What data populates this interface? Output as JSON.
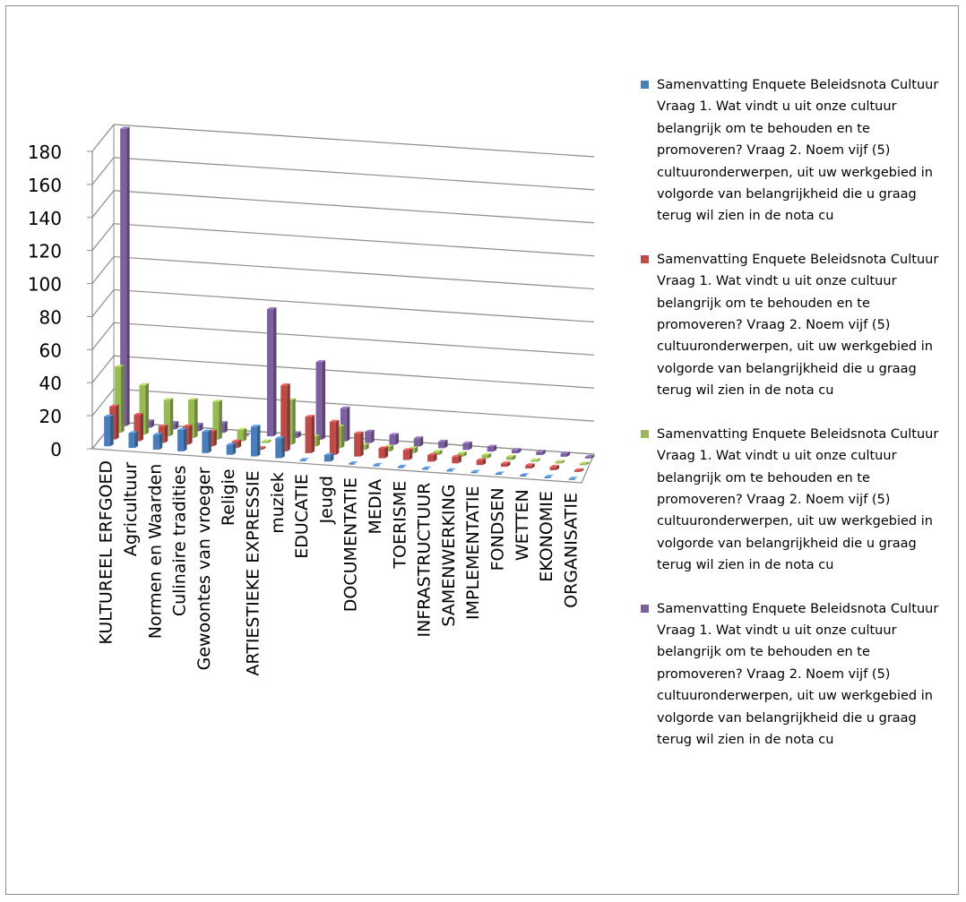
{
  "chart_data": {
    "type": "bar",
    "title": "",
    "xlabel": "",
    "ylabel": "",
    "ylim": [
      0,
      180
    ],
    "yticks": [
      0,
      20,
      40,
      60,
      80,
      100,
      120,
      140,
      160,
      180
    ],
    "grid": true,
    "legend_position": "right",
    "categories": [
      "KULTUREEL ERFGOED",
      "Agricultuur",
      "Normen en Waarden",
      "Culinaire tradities",
      "Gewoontes van vroeger",
      "Religie",
      "ARTIESTIEKE EXPRESSIE",
      "muziek",
      "EDUCATIE",
      "Jeugd",
      "DOCUMENTATIE",
      "MEDIA",
      "TOERISME",
      "INFRASTRUCTUUR",
      "SAMENWERKING",
      "IMPLEMENTATIE",
      "FONDSEN",
      "WETTEN",
      "EKONOMIE",
      "ORGANISATIE"
    ],
    "series": [
      {
        "name": "Samenvatting Enquete Beleidsnota Cultuur Vraag 1. Wat vindt u uit onze cultuur belangrijk om te behouden en te promoveren? Vraag 2. Noem vijf (5) cultuuronderwerpen, uit uw werkgebied in volgorde van belangrijkheid die u graag terug wil zien in de nota cu",
        "color": "#4a7ebb",
        "values": [
          18,
          9,
          9,
          13,
          13,
          6,
          18,
          12,
          0,
          4,
          0,
          0,
          0,
          0,
          0,
          0,
          0,
          0,
          0,
          0
        ]
      },
      {
        "name": "Samenvatting Enquete Beleidsnota Cultuur Vraag 1. Wat vindt u uit onze cultuur belangrijk om te behouden en te promoveren? Vraag 2. Noem vijf (5) cultuuronderwerpen, uit uw werkgebied in volgorde van belangrijkheid die u graag terug wil zien in de nota cu",
        "color": "#be4b48",
        "values": [
          20,
          16,
          10,
          11,
          9,
          4,
          1,
          40,
          22,
          20,
          14,
          6,
          6,
          4,
          4,
          3,
          2,
          2,
          2,
          1
        ]
      },
      {
        "name": "Samenvatting Enquete Beleidsnota Cultuur Vraag 1. Wat vindt u uit onze cultuur belangrijk om te behouden en te promoveren? Vraag 2. Noem vijf (5) cultuuronderwerpen, uit uw werkgebied in volgorde van belangrijkheid die u graag terug wil zien in de nota cu",
        "color": "#98b954",
        "values": [
          40,
          30,
          22,
          23,
          23,
          7,
          1,
          27,
          6,
          13,
          3,
          3,
          3,
          2,
          2,
          2,
          2,
          1,
          1,
          1
        ]
      },
      {
        "name": "Samenvatting Enquete Beleidsnota Cultuur Vraag 1. Wat vindt u uit onze cultuur belangrijk om te behouden en te promoveren? Vraag 2. Noem vijf (5) cultuuronderwerpen, uit uw werkgebied in volgorde van belangrijkheid die u graag terug wil zien in de nota cu",
        "color": "#7d60a0",
        "values": [
          180,
          4,
          4,
          4,
          6,
          0,
          77,
          3,
          47,
          20,
          7,
          6,
          5,
          4,
          4,
          3,
          2,
          2,
          2,
          1
        ]
      }
    ]
  }
}
